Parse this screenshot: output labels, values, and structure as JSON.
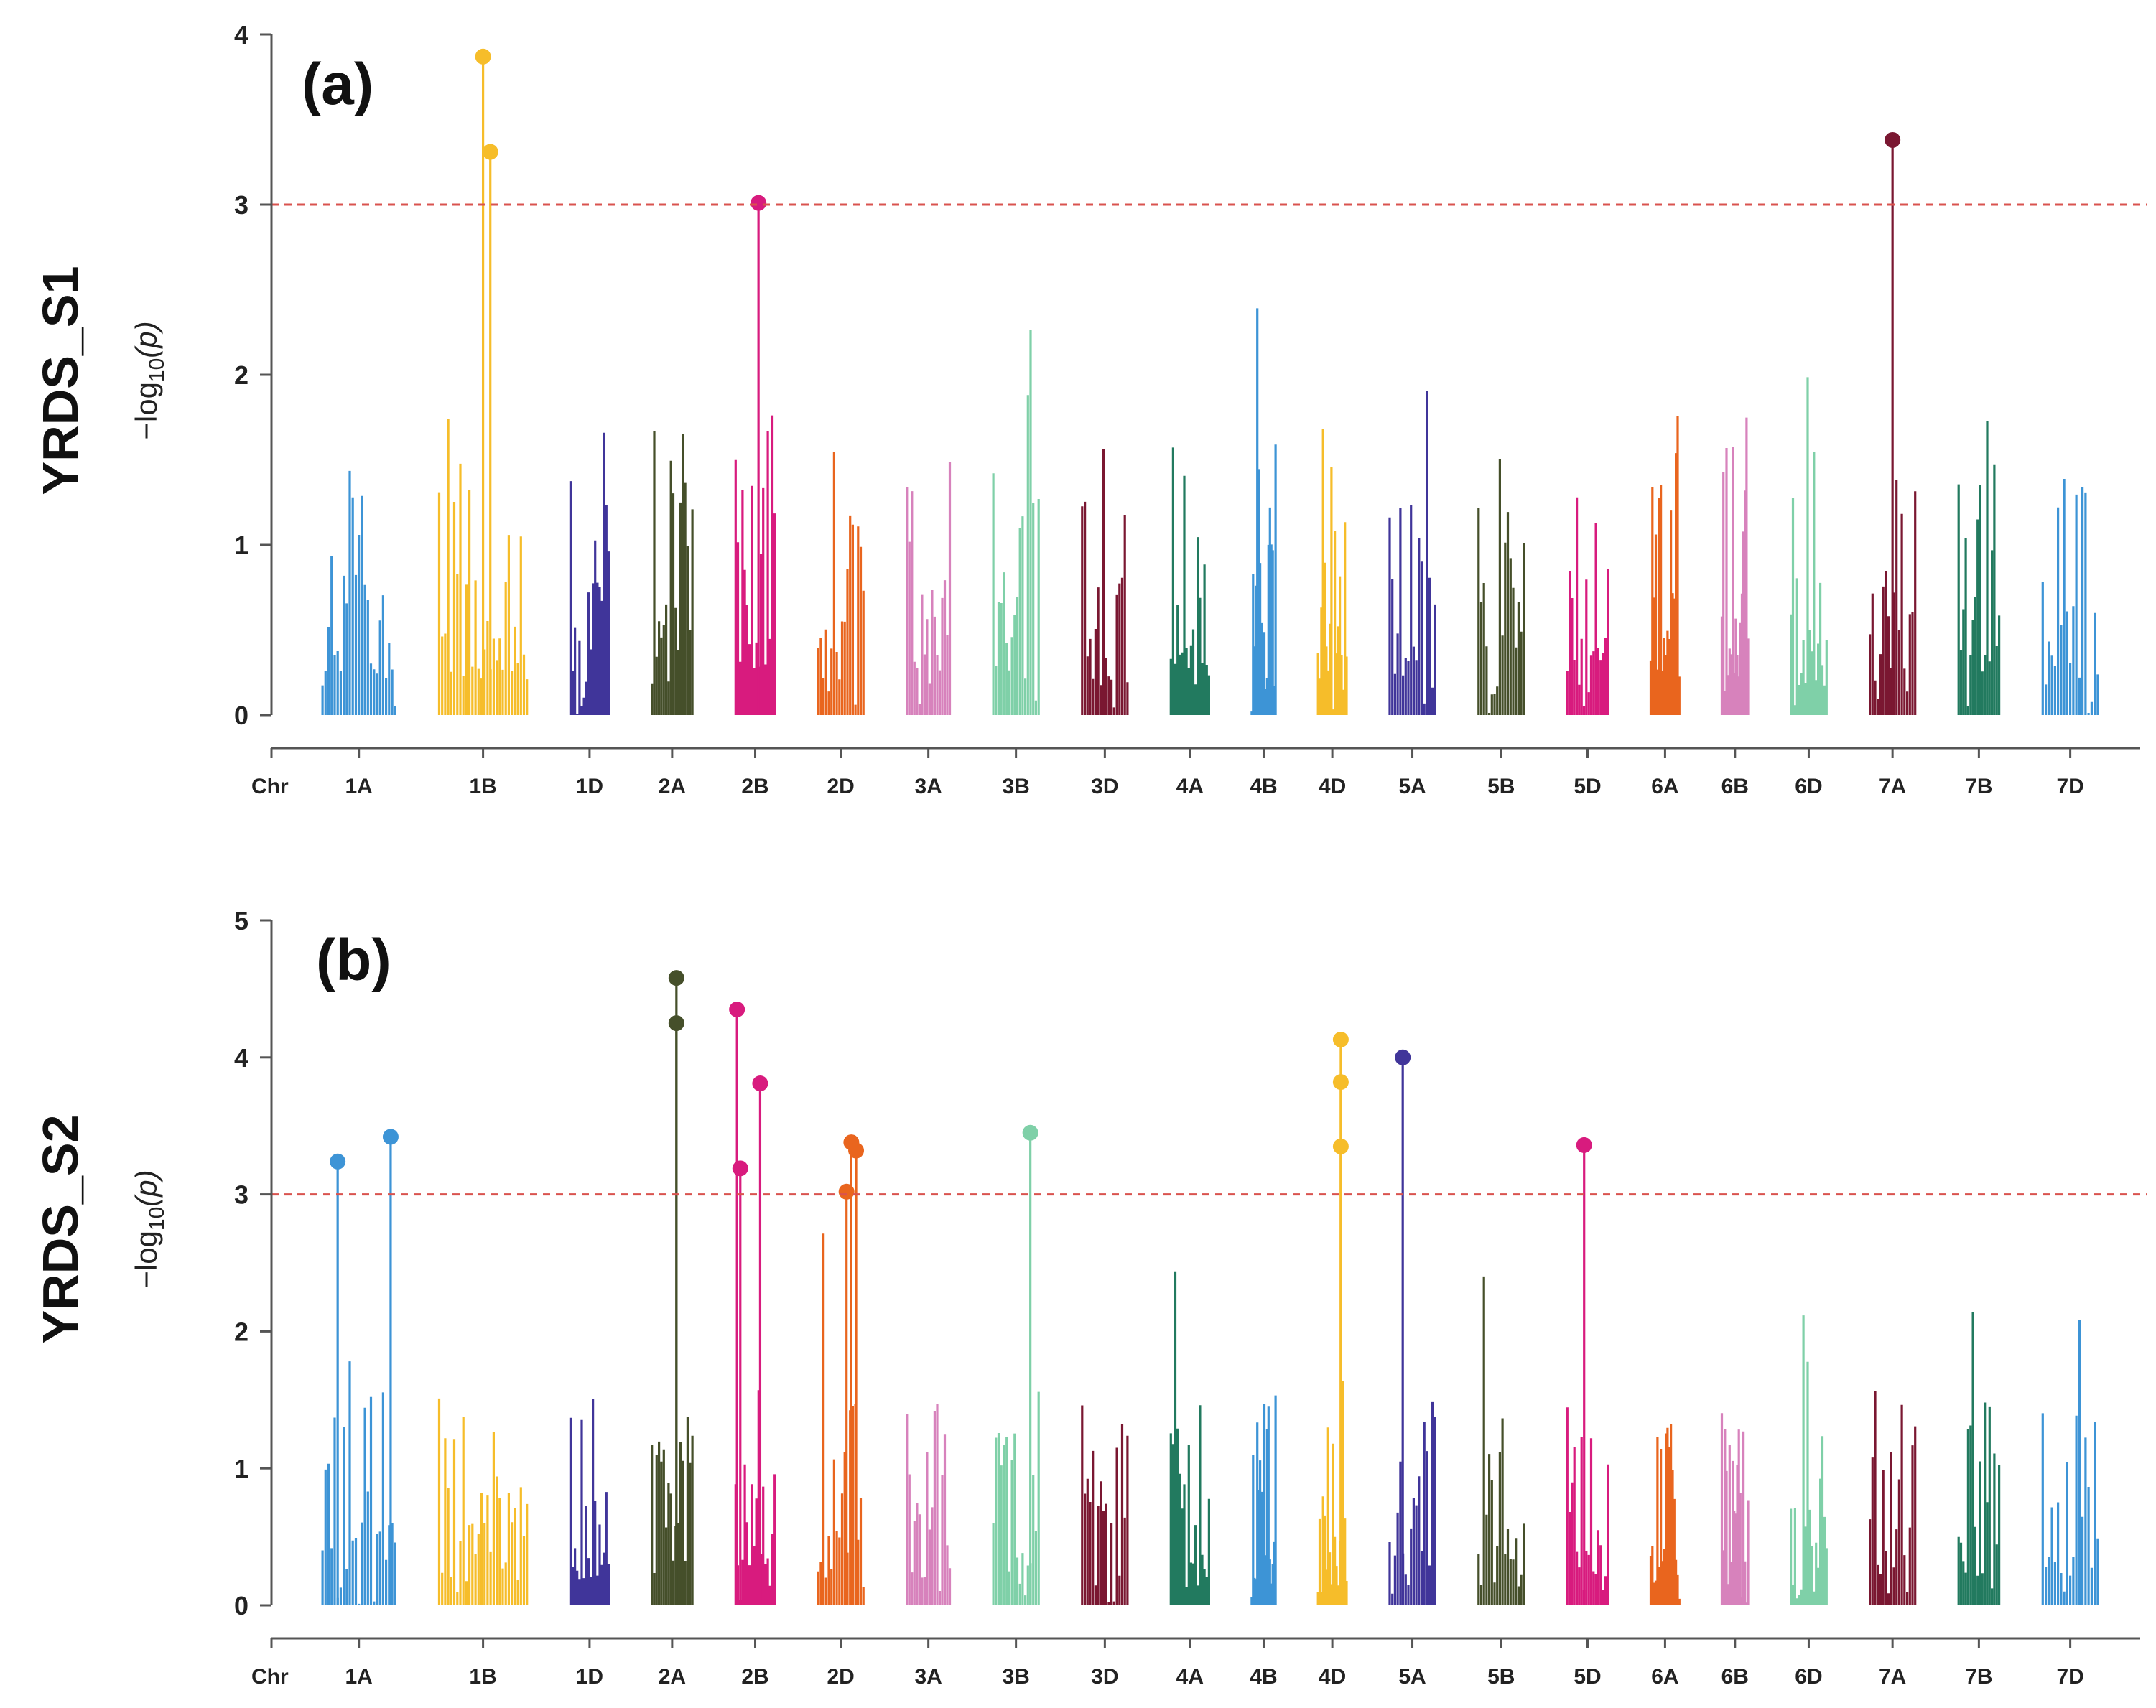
{
  "chart_data": [
    {
      "type": "scatter",
      "subtype": "manhattan",
      "panel_label": "(a)",
      "trait_label": "YRDS_S1",
      "ylabel": "−log10(p)",
      "ylabel_main": "−log",
      "ylabel_sub": "10",
      "ylabel_tail": "(p)",
      "xlabel": "Chr",
      "ylim": [
        0,
        4
      ],
      "yticks": [
        "0",
        "1",
        "2",
        "3",
        "4"
      ],
      "threshold": 3,
      "seed": 11,
      "significant_markers": [
        {
          "chr": "1B",
          "pos": 0.5,
          "value": 3.87
        },
        {
          "chr": "1B",
          "pos": 0.58,
          "value": 3.31
        },
        {
          "chr": "2B",
          "pos": 0.58,
          "value": 3.01
        },
        {
          "chr": "7A",
          "pos": 0.5,
          "value": 3.38
        }
      ]
    },
    {
      "type": "scatter",
      "subtype": "manhattan",
      "panel_label": "(b)",
      "trait_label": "YRDS_S2",
      "ylabel": "−log10(p)",
      "ylabel_main": "−log",
      "ylabel_sub": "10",
      "ylabel_tail": "(p)",
      "xlabel": "Chr",
      "ylim": [
        0,
        5
      ],
      "yticks": [
        "0",
        "1",
        "2",
        "3",
        "4",
        "5"
      ],
      "threshold": 3,
      "seed": 29,
      "significant_markers": [
        {
          "chr": "1A",
          "pos": 0.22,
          "value": 3.24
        },
        {
          "chr": "1A",
          "pos": 0.92,
          "value": 3.42
        },
        {
          "chr": "2A",
          "pos": 0.6,
          "value": 4.58
        },
        {
          "chr": "2A",
          "pos": 0.6,
          "value": 4.25
        },
        {
          "chr": "2B",
          "pos": 0.06,
          "value": 4.35
        },
        {
          "chr": "2B",
          "pos": 0.14,
          "value": 3.19
        },
        {
          "chr": "2B",
          "pos": 0.62,
          "value": 3.81
        },
        {
          "chr": "2D",
          "pos": 0.62,
          "value": 3.02
        },
        {
          "chr": "2D",
          "pos": 0.72,
          "value": 3.38
        },
        {
          "chr": "2D",
          "pos": 0.82,
          "value": 3.32
        },
        {
          "chr": "3B",
          "pos": 0.8,
          "value": 3.45
        },
        {
          "chr": "4D",
          "pos": 0.78,
          "value": 4.13
        },
        {
          "chr": "4D",
          "pos": 0.78,
          "value": 3.82
        },
        {
          "chr": "4D",
          "pos": 0.78,
          "value": 3.35
        },
        {
          "chr": "5A",
          "pos": 0.3,
          "value": 4.0
        },
        {
          "chr": "5D",
          "pos": 0.42,
          "value": 3.36
        }
      ]
    }
  ],
  "chromosomes": [
    {
      "name": "1A",
      "length": 1.5,
      "color": "#3d94d6"
    },
    {
      "name": "1B",
      "length": 1.8,
      "color": "#f6bd2a"
    },
    {
      "name": "1D",
      "length": 0.8,
      "color": "#40359a"
    },
    {
      "name": "2A",
      "length": 0.85,
      "color": "#454f2a"
    },
    {
      "name": "2B",
      "length": 0.82,
      "color": "#d81b7e"
    },
    {
      "name": "2D",
      "length": 0.95,
      "color": "#e9651e"
    },
    {
      "name": "3A",
      "length": 0.9,
      "color": "#d782bc"
    },
    {
      "name": "3B",
      "length": 0.95,
      "color": "#7fd0a8"
    },
    {
      "name": "3D",
      "length": 0.95,
      "color": "#7a1731"
    },
    {
      "name": "4A",
      "length": 0.8,
      "color": "#227a5f"
    },
    {
      "name": "4B",
      "length": 0.5,
      "color": "#3d94d6"
    },
    {
      "name": "4D",
      "length": 0.6,
      "color": "#f6bd2a"
    },
    {
      "name": "5A",
      "length": 0.95,
      "color": "#40359a"
    },
    {
      "name": "5B",
      "length": 0.95,
      "color": "#454f2a"
    },
    {
      "name": "5D",
      "length": 0.85,
      "color": "#d81b7e"
    },
    {
      "name": "6A",
      "length": 0.6,
      "color": "#e9651e"
    },
    {
      "name": "6B",
      "length": 0.55,
      "color": "#d782bc"
    },
    {
      "name": "6D",
      "length": 0.75,
      "color": "#7fd0a8"
    },
    {
      "name": "7A",
      "length": 0.95,
      "color": "#7a1731"
    },
    {
      "name": "7B",
      "length": 0.85,
      "color": "#227a5f"
    },
    {
      "name": "7D",
      "length": 1.15,
      "color": "#3d94d6"
    }
  ],
  "threshold_color": "#d9534f"
}
